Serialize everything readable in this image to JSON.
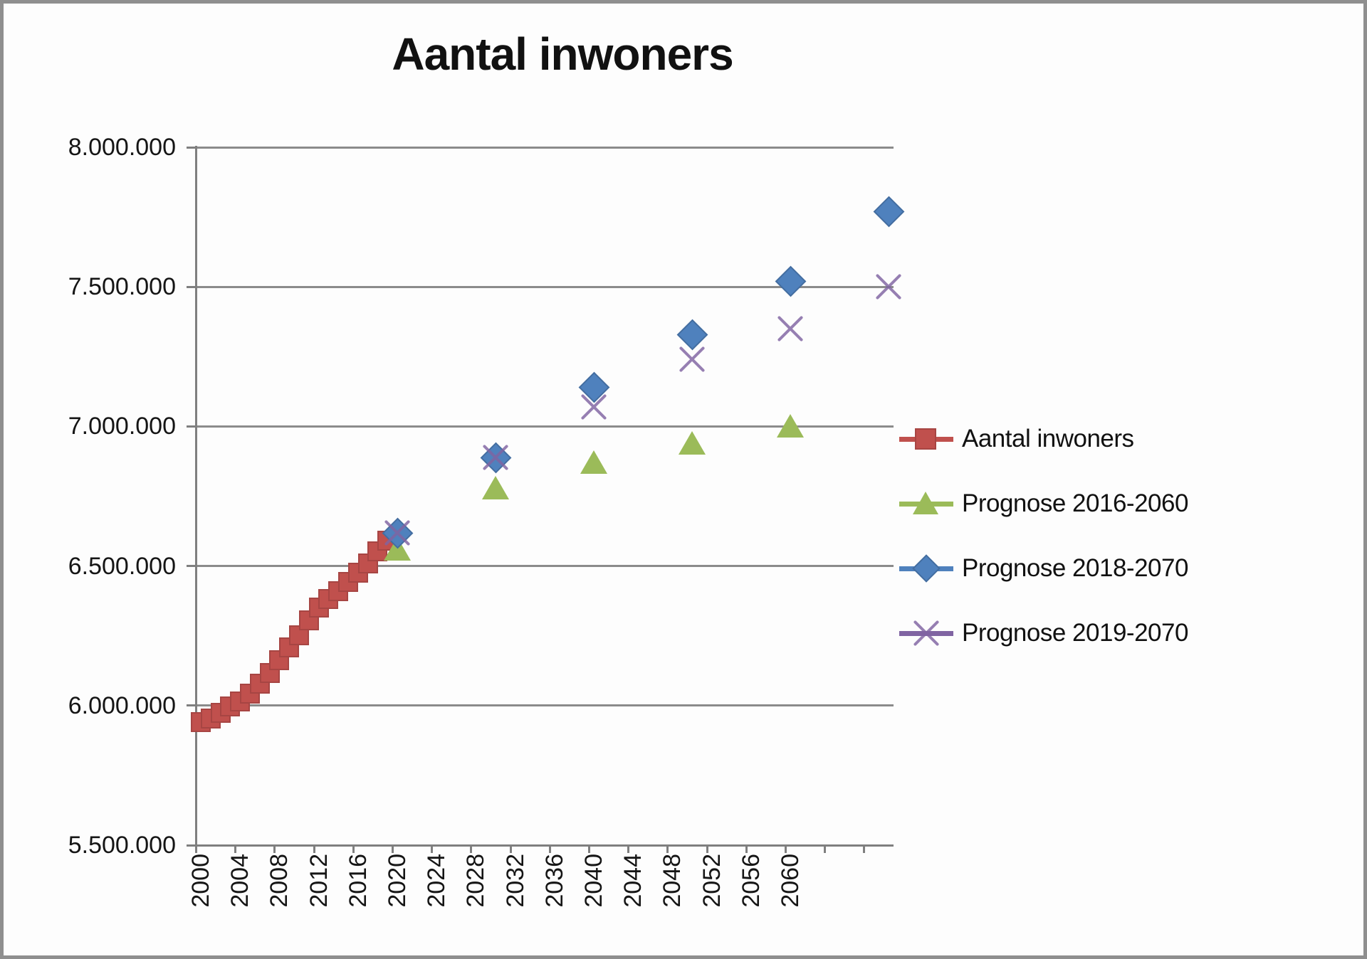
{
  "title": "Aantal inwoners",
  "legend": {
    "items": [
      {
        "label": "Aantal inwoners",
        "marker": "square",
        "color": "#C0504D"
      },
      {
        "label": "Prognose 2016-2060",
        "marker": "triangle",
        "color": "#9BBB59"
      },
      {
        "label": "Prognose 2018-2070",
        "marker": "diamond",
        "color": "#4F81BD"
      },
      {
        "label": "Prognose 2019-2070",
        "marker": "x",
        "color": "#8064A2"
      }
    ]
  },
  "chart_data": {
    "type": "scatter",
    "title": "Aantal inwoners",
    "x_axis": {
      "range_years": [
        2000,
        2070
      ],
      "ticks": [
        {
          "year": 2000,
          "label": "2000"
        },
        {
          "year": 2004,
          "label": "2004"
        },
        {
          "year": 2008,
          "label": "2008"
        },
        {
          "year": 2012,
          "label": "2012"
        },
        {
          "year": 2016,
          "label": "2016"
        },
        {
          "year": 2020,
          "label": "2020"
        },
        {
          "year": 2024,
          "label": "2024"
        },
        {
          "year": 2028,
          "label": "2028"
        },
        {
          "year": 2032,
          "label": "2032"
        },
        {
          "year": 2036,
          "label": "2036"
        },
        {
          "year": 2040,
          "label": "2040"
        },
        {
          "year": 2044,
          "label": "2044"
        },
        {
          "year": 2048,
          "label": "2048"
        },
        {
          "year": 2052,
          "label": "2052"
        },
        {
          "year": 2056,
          "label": "2056"
        },
        {
          "year": 2060,
          "label": "2060"
        }
      ]
    },
    "y_axis": {
      "min": 5500000,
      "max": 8000000,
      "tick_interval": 500000,
      "grid": true,
      "ticks": [
        {
          "value": 8000000,
          "label": "8.000.000"
        },
        {
          "value": 7500000,
          "label": "7.500.000"
        },
        {
          "value": 7000000,
          "label": "7.000.000"
        },
        {
          "value": 6500000,
          "label": "6.500.000"
        },
        {
          "value": 6000000,
          "label": "6.000.000"
        },
        {
          "value": 5500000,
          "label": "5.500.000"
        }
      ]
    },
    "legend_position": "right",
    "series": [
      {
        "name": "Aantal inwoners",
        "marker": "square",
        "color": "#C0504D",
        "points": [
          [
            2000,
            5940000
          ],
          [
            2001,
            5953000
          ],
          [
            2002,
            5973000
          ],
          [
            2003,
            5996000
          ],
          [
            2004,
            6016000
          ],
          [
            2005,
            6044000
          ],
          [
            2006,
            6078000
          ],
          [
            2007,
            6117000
          ],
          [
            2008,
            6162000
          ],
          [
            2009,
            6208000
          ],
          [
            2010,
            6253000
          ],
          [
            2011,
            6306000
          ],
          [
            2012,
            6350000
          ],
          [
            2013,
            6381000
          ],
          [
            2014,
            6410000
          ],
          [
            2015,
            6444000
          ],
          [
            2016,
            6477000
          ],
          [
            2017,
            6509000
          ],
          [
            2018,
            6552000
          ],
          [
            2019,
            6590000
          ]
        ]
      },
      {
        "name": "Prognose 2016-2060",
        "marker": "triangle",
        "color": "#9BBB59",
        "points": [
          [
            2020,
            6560000
          ],
          [
            2030,
            6780000
          ],
          [
            2040,
            6870000
          ],
          [
            2050,
            6940000
          ],
          [
            2060,
            7000000
          ]
        ]
      },
      {
        "name": "Prognose 2018-2070",
        "marker": "diamond",
        "color": "#4F81BD",
        "points": [
          [
            2020,
            6620000
          ],
          [
            2030,
            6890000
          ],
          [
            2040,
            7140000
          ],
          [
            2050,
            7330000
          ],
          [
            2060,
            7520000
          ],
          [
            2070,
            7770000
          ]
        ]
      },
      {
        "name": "Prognose 2019-2070",
        "marker": "x",
        "color": "#8064A2",
        "points": [
          [
            2020,
            6620000
          ],
          [
            2030,
            6890000
          ],
          [
            2040,
            7070000
          ],
          [
            2050,
            7240000
          ],
          [
            2060,
            7350000
          ],
          [
            2070,
            7500000
          ]
        ]
      }
    ]
  },
  "colors": {
    "gridline": "#8B8B8B",
    "axis": "#7F7F7F",
    "text": "#151515",
    "frame": "#8F8F8F",
    "background": "#FDFDFD"
  }
}
